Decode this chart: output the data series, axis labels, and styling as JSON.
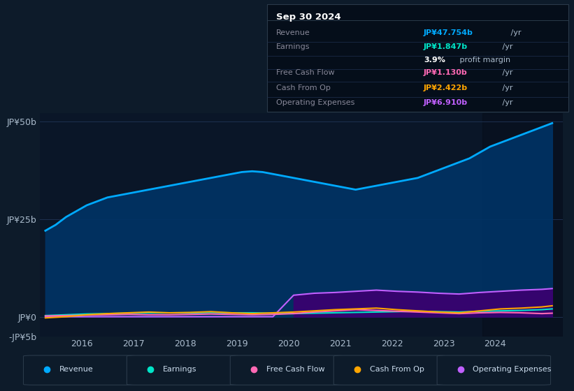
{
  "bg_color": "#0d1b2a",
  "plot_bg_color": "#0a1628",
  "grid_color": "#1e3050",
  "ylim": [
    -5,
    52
  ],
  "yticks": [
    -5,
    0,
    25,
    50
  ],
  "ytick_labels": [
    "-JP¥5b",
    "JP¥0",
    "JP¥25b",
    "JP¥50b"
  ],
  "xlim": [
    2015.2,
    2025.3
  ],
  "xticks": [
    2016,
    2017,
    2018,
    2019,
    2020,
    2021,
    2022,
    2023,
    2024
  ],
  "series": {
    "revenue": {
      "color": "#00aaff",
      "fill_color": "#003366",
      "linewidth": 2.0,
      "x": [
        2015.3,
        2015.5,
        2015.7,
        2015.9,
        2016.1,
        2016.3,
        2016.5,
        2016.7,
        2016.9,
        2017.1,
        2017.3,
        2017.5,
        2017.7,
        2017.9,
        2018.1,
        2018.3,
        2018.5,
        2018.7,
        2018.9,
        2019.1,
        2019.3,
        2019.5,
        2019.7,
        2019.9,
        2020.1,
        2020.3,
        2020.5,
        2020.7,
        2020.9,
        2021.1,
        2021.3,
        2021.5,
        2021.7,
        2021.9,
        2022.1,
        2022.3,
        2022.5,
        2022.7,
        2022.9,
        2023.1,
        2023.3,
        2023.5,
        2023.7,
        2023.9,
        2024.1,
        2024.3,
        2024.5,
        2024.7,
        2024.9,
        2025.1
      ],
      "y": [
        22.0,
        23.5,
        25.5,
        27.0,
        28.5,
        29.5,
        30.5,
        31.0,
        31.5,
        32.0,
        32.5,
        33.0,
        33.5,
        34.0,
        34.5,
        35.0,
        35.5,
        36.0,
        36.5,
        37.0,
        37.2,
        37.0,
        36.5,
        36.0,
        35.5,
        35.0,
        34.5,
        34.0,
        33.5,
        33.0,
        32.5,
        33.0,
        33.5,
        34.0,
        34.5,
        35.0,
        35.5,
        36.5,
        37.5,
        38.5,
        39.5,
        40.5,
        42.0,
        43.5,
        44.5,
        45.5,
        46.5,
        47.5,
        48.5,
        49.5
      ]
    },
    "earnings": {
      "color": "#00e5c8",
      "linewidth": 1.5,
      "x": [
        2015.3,
        2015.7,
        2016.1,
        2016.5,
        2016.9,
        2017.3,
        2017.7,
        2018.1,
        2018.5,
        2018.9,
        2019.3,
        2019.7,
        2020.1,
        2020.5,
        2020.9,
        2021.3,
        2021.7,
        2022.1,
        2022.5,
        2022.9,
        2023.3,
        2023.7,
        2024.1,
        2024.5,
        2024.9,
        2025.1
      ],
      "y": [
        0.3,
        0.5,
        0.7,
        0.8,
        0.9,
        1.0,
        1.0,
        1.0,
        1.1,
        1.0,
        1.0,
        0.9,
        0.8,
        0.9,
        1.0,
        1.1,
        1.2,
        1.3,
        1.4,
        1.3,
        1.2,
        1.4,
        1.5,
        1.6,
        1.8,
        2.0
      ]
    },
    "free_cash_flow": {
      "color": "#ff69b4",
      "linewidth": 1.5,
      "x": [
        2015.3,
        2015.7,
        2016.1,
        2016.5,
        2016.9,
        2017.3,
        2017.7,
        2018.1,
        2018.5,
        2018.9,
        2019.3,
        2019.7,
        2020.1,
        2020.5,
        2020.9,
        2021.3,
        2021.7,
        2022.1,
        2022.5,
        2022.9,
        2023.3,
        2023.7,
        2024.1,
        2024.5,
        2024.9,
        2025.1
      ],
      "y": [
        0.2,
        0.3,
        0.4,
        0.5,
        0.6,
        0.5,
        0.5,
        0.6,
        0.7,
        0.6,
        0.5,
        0.6,
        0.8,
        1.2,
        1.5,
        1.8,
        1.6,
        1.4,
        1.2,
        1.0,
        0.8,
        1.0,
        1.1,
        1.0,
        0.8,
        0.9
      ]
    },
    "cash_from_op": {
      "color": "#ffa500",
      "linewidth": 1.5,
      "x": [
        2015.3,
        2015.7,
        2016.1,
        2016.5,
        2016.9,
        2017.3,
        2017.7,
        2018.1,
        2018.5,
        2018.9,
        2019.3,
        2019.7,
        2020.1,
        2020.5,
        2020.9,
        2021.3,
        2021.7,
        2022.1,
        2022.5,
        2022.9,
        2023.3,
        2023.7,
        2024.1,
        2024.5,
        2024.9,
        2025.1
      ],
      "y": [
        -0.3,
        0.0,
        0.5,
        0.8,
        1.0,
        1.2,
        1.0,
        1.1,
        1.3,
        1.0,
        0.8,
        1.0,
        1.2,
        1.5,
        1.8,
        2.0,
        2.2,
        1.8,
        1.5,
        1.2,
        1.0,
        1.5,
        2.0,
        2.2,
        2.5,
        2.8
      ]
    },
    "operating_expenses": {
      "color": "#c060ff",
      "fill_color": "#3b0070",
      "linewidth": 1.5,
      "x": [
        2015.3,
        2015.7,
        2016.1,
        2016.5,
        2016.9,
        2017.3,
        2017.7,
        2018.1,
        2018.5,
        2018.9,
        2019.3,
        2019.7,
        2020.1,
        2020.5,
        2020.9,
        2021.3,
        2021.7,
        2022.1,
        2022.5,
        2022.9,
        2023.3,
        2023.7,
        2024.1,
        2024.5,
        2024.9,
        2025.1
      ],
      "y": [
        0.0,
        0.0,
        0.0,
        0.0,
        0.0,
        0.0,
        0.0,
        0.0,
        0.0,
        0.0,
        0.0,
        0.0,
        5.5,
        6.0,
        6.2,
        6.5,
        6.8,
        6.5,
        6.3,
        6.0,
        5.8,
        6.2,
        6.5,
        6.8,
        7.0,
        7.2
      ]
    }
  },
  "legend": [
    {
      "label": "Revenue",
      "color": "#00aaff"
    },
    {
      "label": "Earnings",
      "color": "#00e5c8"
    },
    {
      "label": "Free Cash Flow",
      "color": "#ff69b4"
    },
    {
      "label": "Cash From Op",
      "color": "#ffa500"
    },
    {
      "label": "Operating Expenses",
      "color": "#c060ff"
    }
  ],
  "shaded_x_start": 2023.75,
  "info_box": {
    "date": "Sep 30 2024",
    "date_color": "#ffffff",
    "bg_color": "#050e1a",
    "border_color": "#2a3a4a",
    "rows": [
      {
        "label": "Revenue",
        "label_color": "#888899",
        "value": "JP¥47.754b",
        "value_color": "#00aaff",
        "suffix": " /yr",
        "suffix_color": "#aabbcc"
      },
      {
        "label": "Earnings",
        "label_color": "#888899",
        "value": "JP¥1.847b",
        "value_color": "#00e5c8",
        "suffix": " /yr",
        "suffix_color": "#aabbcc"
      },
      {
        "label": "",
        "label_color": "#888899",
        "value": "3.9%",
        "value_color": "#ffffff",
        "suffix": " profit margin",
        "suffix_color": "#aabbcc"
      },
      {
        "label": "Free Cash Flow",
        "label_color": "#888899",
        "value": "JP¥1.130b",
        "value_color": "#ff69b4",
        "suffix": " /yr",
        "suffix_color": "#aabbcc"
      },
      {
        "label": "Cash From Op",
        "label_color": "#888899",
        "value": "JP¥2.422b",
        "value_color": "#ffa500",
        "suffix": " /yr",
        "suffix_color": "#aabbcc"
      },
      {
        "label": "Operating Expenses",
        "label_color": "#888899",
        "value": "JP¥6.910b",
        "value_color": "#c060ff",
        "suffix": " /yr",
        "suffix_color": "#aabbcc"
      }
    ]
  }
}
